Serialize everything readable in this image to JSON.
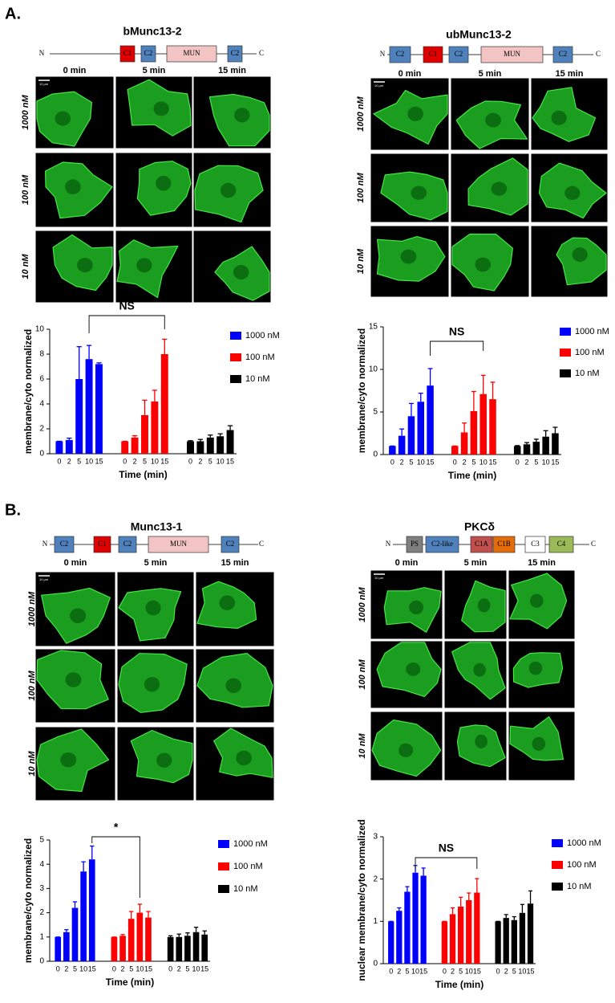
{
  "panel_labels": [
    "A.",
    "B."
  ],
  "figures": [
    {
      "title": "bMunc13-2",
      "termini": [
        "N",
        "C"
      ],
      "domains": [
        {
          "label": "C1",
          "color": "#e00000"
        },
        {
          "label": "C2",
          "color": "#4f81bd"
        },
        {
          "label": "MUN",
          "color": "#f2c4c4"
        },
        {
          "label": "C2",
          "color": "#4f81bd"
        }
      ],
      "times": [
        "0 min",
        "5 min",
        "15 min"
      ],
      "concentrations": [
        "1000 nM",
        "100 nM",
        "10 nM"
      ],
      "scale_bar": "10 µm"
    },
    {
      "title": "ubMunc13-2",
      "termini": [
        "N",
        "C"
      ],
      "domains": [
        {
          "label": "C2",
          "color": "#4f81bd"
        },
        {
          "label": "C1",
          "color": "#e00000"
        },
        {
          "label": "C2",
          "color": "#4f81bd"
        },
        {
          "label": "MUN",
          "color": "#f2c4c4"
        },
        {
          "label": "C2",
          "color": "#4f81bd"
        }
      ],
      "times": [
        "0 min",
        "5 min",
        "15 min"
      ],
      "concentrations": [
        "1000 nM",
        "100 nM",
        "10 nM"
      ],
      "scale_bar": "10 µm"
    },
    {
      "title": "Munc13-1",
      "termini": [
        "N",
        "C"
      ],
      "domains": [
        {
          "label": "C2",
          "color": "#4f81bd"
        },
        {
          "label": "C1",
          "color": "#e00000"
        },
        {
          "label": "C2",
          "color": "#4f81bd"
        },
        {
          "label": "MUN",
          "color": "#f2c4c4"
        },
        {
          "label": "C2",
          "color": "#4f81bd"
        }
      ],
      "times": [
        "0 min",
        "5 min",
        "15 min"
      ],
      "concentrations": [
        "1000 nM",
        "100 nM",
        "10 nM"
      ],
      "scale_bar": "10 µm"
    },
    {
      "title": "PKCδ",
      "termini": [
        "N",
        "C"
      ],
      "domains": [
        {
          "label": "PS",
          "color": "#7f7f7f"
        },
        {
          "label": "C2-like",
          "color": "#4f81bd"
        },
        {
          "label": "C1A",
          "color": "#c0504d"
        },
        {
          "label": "C1B",
          "color": "#e46c0a"
        },
        {
          "label": "C3",
          "color": "#ffffff"
        },
        {
          "label": "C4",
          "color": "#9bbb59"
        }
      ],
      "times": [
        "0 min",
        "5 min",
        "15 min"
      ],
      "concentrations": [
        "1000 nM",
        "100 nM",
        "10 nM"
      ],
      "scale_bar": "10 µm"
    }
  ],
  "chart_data": [
    {
      "type": "bar",
      "y_label": "membrane/cyto normalized",
      "x_label": "Time (min)",
      "categories": [
        "0",
        "2",
        "5",
        "10",
        "15"
      ],
      "ylim": [
        0,
        10
      ],
      "yticks": [
        0,
        2,
        4,
        6,
        8,
        10
      ],
      "legend": "upper right",
      "annotation": "NS",
      "series": [
        {
          "name": "1000 nM",
          "color": "#0000ff",
          "values": [
            1,
            1.1,
            6,
            7.6,
            7.2
          ],
          "errors": [
            0,
            0.15,
            2.6,
            1.1,
            0.1
          ]
        },
        {
          "name": "100 nM",
          "color": "#ff0000",
          "values": [
            1,
            1.3,
            3.1,
            4.2,
            8
          ],
          "errors": [
            0,
            0.15,
            1.2,
            0.9,
            1.2
          ]
        },
        {
          "name": "10 nM",
          "color": "#000000",
          "values": [
            1,
            1,
            1.3,
            1.4,
            1.9
          ],
          "errors": [
            0.05,
            0.15,
            0.2,
            0.2,
            0.35
          ]
        }
      ]
    },
    {
      "type": "bar",
      "y_label": "membrane/cyto normalized",
      "x_label": "Time (min)",
      "categories": [
        "0",
        "2",
        "5",
        "10",
        "15"
      ],
      "ylim": [
        0,
        15
      ],
      "yticks": [
        0,
        5,
        10,
        15
      ],
      "legend": "upper right",
      "annotation": "NS",
      "series": [
        {
          "name": "1000 nM",
          "color": "#0000ff",
          "values": [
            1,
            2.2,
            4.5,
            6.2,
            8.1
          ],
          "errors": [
            0,
            0.8,
            1.5,
            1,
            2
          ]
        },
        {
          "name": "100 nM",
          "color": "#ff0000",
          "values": [
            1,
            2.6,
            5.1,
            7.1,
            6.5
          ],
          "errors": [
            0,
            1.1,
            2.3,
            2.2,
            2
          ]
        },
        {
          "name": "10 nM",
          "color": "#000000",
          "values": [
            1,
            1.2,
            1.5,
            2.1,
            2.5
          ],
          "errors": [
            0.05,
            0.2,
            0.3,
            0.7,
            0.7
          ]
        }
      ]
    },
    {
      "type": "bar",
      "y_label": "membrane/cyto normalized",
      "x_label": "Time (min)",
      "categories": [
        "0",
        "2",
        "5",
        "10",
        "15"
      ],
      "ylim": [
        0,
        5
      ],
      "yticks": [
        0,
        1,
        2,
        3,
        4,
        5
      ],
      "legend": "upper right",
      "annotation": "*",
      "series": [
        {
          "name": "1000 nM",
          "color": "#0000ff",
          "values": [
            1,
            1.2,
            2.2,
            3.7,
            4.2
          ],
          "errors": [
            0,
            0.1,
            0.25,
            0.4,
            0.55
          ]
        },
        {
          "name": "100 nM",
          "color": "#ff0000",
          "values": [
            1,
            1.05,
            1.75,
            2,
            1.8
          ],
          "errors": [
            0,
            0.05,
            0.3,
            0.35,
            0.25
          ]
        },
        {
          "name": "10 nM",
          "color": "#000000",
          "values": [
            1,
            1,
            1.05,
            1.2,
            1.1
          ],
          "errors": [
            0.05,
            0.12,
            0.12,
            0.2,
            0.15
          ]
        }
      ]
    },
    {
      "type": "bar",
      "y_label": "nuclear membrane/cyto normalized",
      "x_label": "Time (min)",
      "categories": [
        "0",
        "2",
        "5",
        "10",
        "15"
      ],
      "ylim": [
        0,
        3
      ],
      "yticks": [
        0,
        1,
        2,
        3
      ],
      "legend": "upper right",
      "annotation": "NS",
      "series": [
        {
          "name": "1000 nM",
          "color": "#0000ff",
          "values": [
            1,
            1.25,
            1.7,
            2.15,
            2.08
          ],
          "errors": [
            0,
            0.07,
            0.12,
            0.17,
            0.18
          ]
        },
        {
          "name": "100 nM",
          "color": "#ff0000",
          "values": [
            1,
            1.17,
            1.35,
            1.5,
            1.68
          ],
          "errors": [
            0,
            0.15,
            0.22,
            0.17,
            0.33
          ]
        },
        {
          "name": "10 nM",
          "color": "#000000",
          "values": [
            1,
            1.08,
            1.03,
            1.2,
            1.42
          ],
          "errors": [
            0,
            0.08,
            0.08,
            0.2,
            0.3
          ]
        }
      ]
    }
  ]
}
